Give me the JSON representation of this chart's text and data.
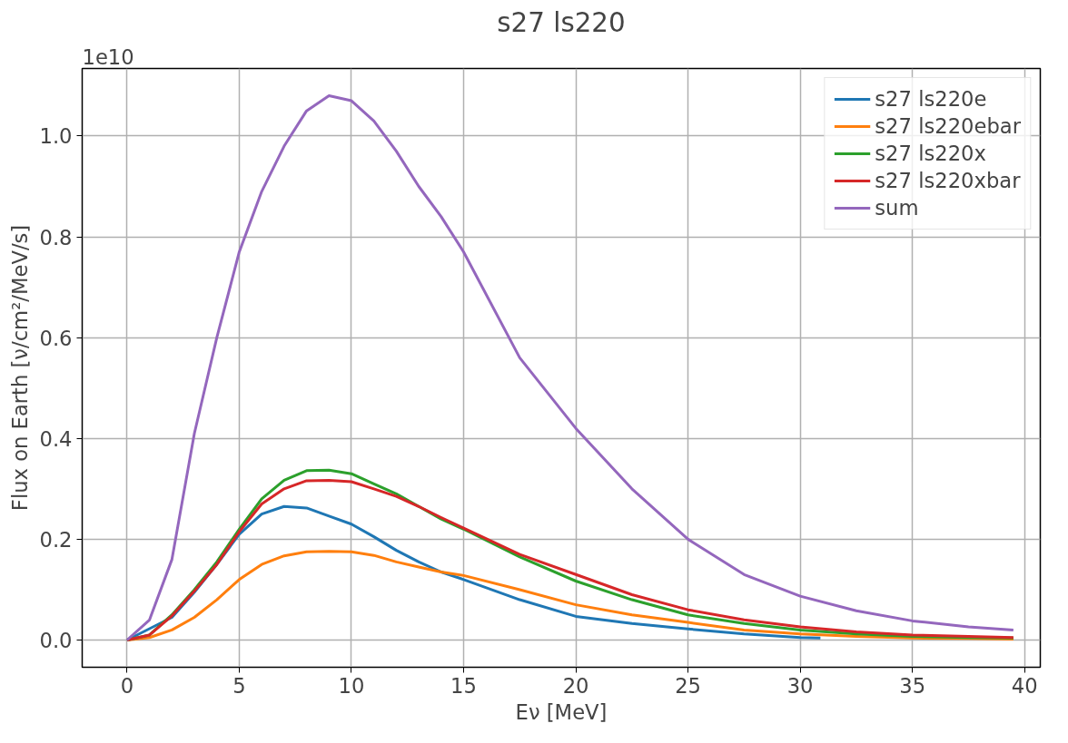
{
  "chart_data": {
    "type": "line",
    "title": "s27 ls220",
    "xlabel": "Eν [MeV]",
    "ylabel": "Flux on Earth [ν/cm²/MeV/s]",
    "annotations": [
      "1e10"
    ],
    "x": [
      0,
      1,
      2,
      3,
      4,
      5,
      6,
      7,
      8,
      9,
      10,
      11,
      12,
      13,
      14,
      15,
      17.5,
      20,
      22.5,
      25,
      27.5,
      30,
      32.5,
      35,
      37.5,
      39.5
    ],
    "series": [
      {
        "name": "s27 ls220e",
        "color": "#1f77b4",
        "x": [
          0,
          2,
          3,
          4,
          5,
          6,
          7,
          8,
          9,
          10,
          11,
          12,
          13,
          14,
          15,
          17.5,
          20,
          22.5,
          25,
          27.5,
          30,
          30.9
        ],
        "values": [
          0,
          0.045,
          0.095,
          0.15,
          0.21,
          0.25,
          0.265,
          0.262,
          0.246,
          0.23,
          0.205,
          0.178,
          0.155,
          0.135,
          0.12,
          0.08,
          0.047,
          0.033,
          0.022,
          0.012,
          0.005,
          0.004
        ]
      },
      {
        "name": "s27 ls220ebar",
        "color": "#ff7f0e",
        "values": [
          0,
          0.005,
          0.02,
          0.045,
          0.08,
          0.12,
          0.15,
          0.167,
          0.175,
          0.176,
          0.175,
          0.168,
          0.155,
          0.145,
          0.135,
          0.128,
          0.1,
          0.07,
          0.05,
          0.035,
          0.02,
          0.012,
          0.007,
          0.004,
          0.003,
          0.002
        ]
      },
      {
        "name": "s27 ls220x",
        "color": "#2ca02c",
        "values": [
          0,
          0.01,
          0.05,
          0.1,
          0.155,
          0.22,
          0.28,
          0.317,
          0.336,
          0.337,
          0.33,
          0.31,
          0.29,
          0.265,
          0.24,
          0.22,
          0.165,
          0.117,
          0.08,
          0.05,
          0.033,
          0.02,
          0.012,
          0.007,
          0.005,
          0.004
        ]
      },
      {
        "name": "s27 ls220xbar",
        "color": "#d62728",
        "values": [
          0,
          0.01,
          0.048,
          0.097,
          0.15,
          0.215,
          0.27,
          0.3,
          0.316,
          0.317,
          0.314,
          0.3,
          0.285,
          0.265,
          0.243,
          0.222,
          0.17,
          0.13,
          0.09,
          0.06,
          0.04,
          0.026,
          0.016,
          0.01,
          0.007,
          0.005
        ]
      },
      {
        "name": "sum",
        "color": "#9467bd",
        "values": [
          0,
          0.04,
          0.16,
          0.41,
          0.6,
          0.77,
          0.89,
          0.98,
          1.05,
          1.08,
          1.07,
          1.03,
          0.97,
          0.9,
          0.84,
          0.77,
          0.56,
          0.42,
          0.3,
          0.2,
          0.13,
          0.087,
          0.058,
          0.038,
          0.026,
          0.02
        ]
      }
    ],
    "xlim": [
      -2,
      40.7
    ],
    "ylim": [
      -0.054,
      1.134
    ],
    "xticks": [
      0,
      5,
      10,
      15,
      20,
      25,
      30,
      35,
      40
    ],
    "yticks": [
      {
        "value": 0,
        "label": "0.0"
      },
      {
        "value": 0.2,
        "label": "0.2"
      },
      {
        "value": 0.4,
        "label": "0.4"
      },
      {
        "value": 0.6,
        "label": "0.6"
      },
      {
        "value": 0.8,
        "label": "0.8"
      },
      {
        "value": 1.0,
        "label": "1.0"
      }
    ],
    "grid": true,
    "legend": "top right",
    "line_style": "solid"
  }
}
